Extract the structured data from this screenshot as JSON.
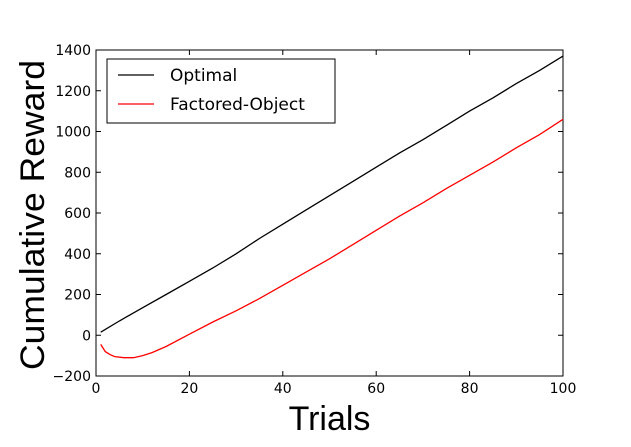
{
  "chart_data": {
    "type": "line",
    "xlabel": "Trials",
    "ylabel": "Cumulative Reward",
    "xlim": [
      0,
      100
    ],
    "ylim": [
      -200,
      1400
    ],
    "xticks": [
      0,
      20,
      40,
      60,
      80,
      100
    ],
    "yticks": [
      -200,
      0,
      200,
      400,
      600,
      800,
      1000,
      1200,
      1400
    ],
    "grid": false,
    "legend_position": "top-left",
    "series": [
      {
        "name": "Optimal",
        "color": "#000000",
        "x": [
          1,
          5,
          10,
          15,
          20,
          25,
          30,
          35,
          40,
          45,
          50,
          55,
          60,
          65,
          70,
          75,
          80,
          85,
          90,
          95,
          100
        ],
        "y": [
          15,
          70,
          135,
          200,
          265,
          330,
          400,
          475,
          545,
          615,
          685,
          755,
          825,
          895,
          960,
          1030,
          1100,
          1165,
          1235,
          1300,
          1370
        ]
      },
      {
        "name": "Factored-Object",
        "color": "#ff0000",
        "x": [
          1,
          2,
          3,
          4,
          6,
          8,
          10,
          12,
          15,
          20,
          25,
          30,
          35,
          40,
          45,
          50,
          55,
          60,
          65,
          70,
          75,
          80,
          85,
          90,
          95,
          100
        ],
        "y": [
          -45,
          -80,
          -95,
          -105,
          -110,
          -110,
          -100,
          -85,
          -55,
          5,
          65,
          120,
          180,
          245,
          310,
          375,
          445,
          515,
          585,
          650,
          720,
          785,
          850,
          920,
          985,
          1060
        ]
      }
    ]
  }
}
